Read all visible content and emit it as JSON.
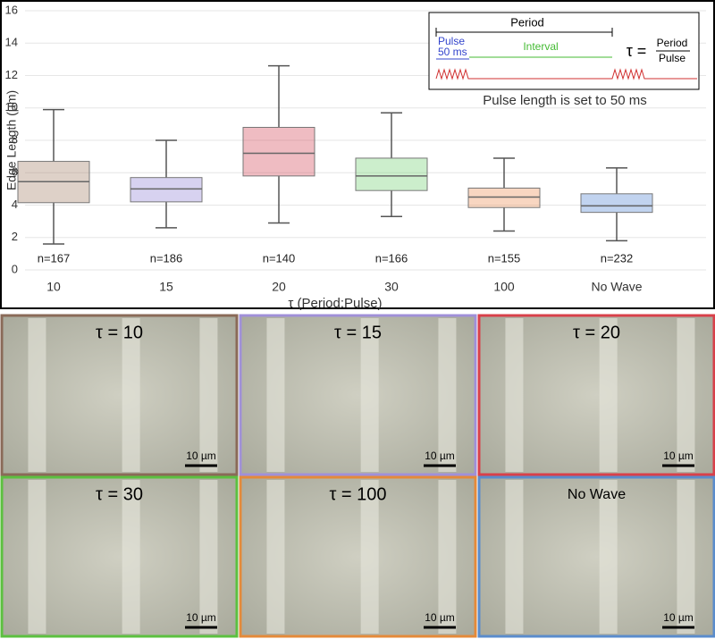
{
  "chart_data": {
    "type": "box",
    "ylabel": "Edge Length (µm)",
    "xlabel": "τ (Period:Pulse)",
    "ylim": [
      0,
      16
    ],
    "yticks": [
      0,
      2,
      4,
      6,
      8,
      10,
      12,
      14,
      16
    ],
    "grid": true,
    "categories": [
      "10",
      "15",
      "20",
      "30",
      "100",
      "No Wave"
    ],
    "n_labels": [
      "n=167",
      "n=186",
      "n=140",
      "n=166",
      "n=155",
      "n=232"
    ],
    "boxes": [
      {
        "color": "#a07c62",
        "whisker_low": 1.6,
        "q1": 4.15,
        "median": 5.45,
        "q3": 6.7,
        "whisker_high": 9.9
      },
      {
        "color": "#8c7fd4",
        "whisker_low": 2.6,
        "q1": 4.2,
        "median": 5.0,
        "q3": 5.7,
        "whisker_high": 8.0
      },
      {
        "color": "#d2404f",
        "whisker_low": 2.9,
        "q1": 5.8,
        "median": 7.2,
        "q3": 8.8,
        "whisker_high": 12.6
      },
      {
        "color": "#6ccf6c",
        "whisker_low": 3.3,
        "q1": 4.9,
        "median": 5.8,
        "q3": 6.9,
        "whisker_high": 9.7
      },
      {
        "color": "#ea8a4c",
        "whisker_low": 2.4,
        "q1": 3.85,
        "median": 4.5,
        "q3": 5.05,
        "whisker_high": 6.9
      },
      {
        "color": "#4c82d2",
        "whisker_low": 1.8,
        "q1": 3.55,
        "median": 3.95,
        "q3": 4.7,
        "whisker_high": 6.3
      }
    ]
  },
  "inset": {
    "period": "Period",
    "pulse": "Pulse",
    "pulse_length": "50 ms",
    "interval": "Interval",
    "tau": "τ =",
    "numerator": "Period",
    "denominator": "Pulse",
    "caption": "Pulse length is set to 50 ms"
  },
  "panels": [
    {
      "label": "τ = 10",
      "color": "#8a6a58",
      "scale": "10 µm"
    },
    {
      "label": "τ = 15",
      "color": "#a090d8",
      "scale": "10 µm"
    },
    {
      "label": "τ = 20",
      "color": "#d8404a",
      "scale": "10 µm"
    },
    {
      "label": "τ = 30",
      "color": "#5cc040",
      "scale": "10 µm"
    },
    {
      "label": "τ = 100",
      "color": "#e48a3a",
      "scale": "10 µm"
    },
    {
      "label": "No Wave",
      "color": "#5a8ccc",
      "scale": "10 µm"
    }
  ]
}
